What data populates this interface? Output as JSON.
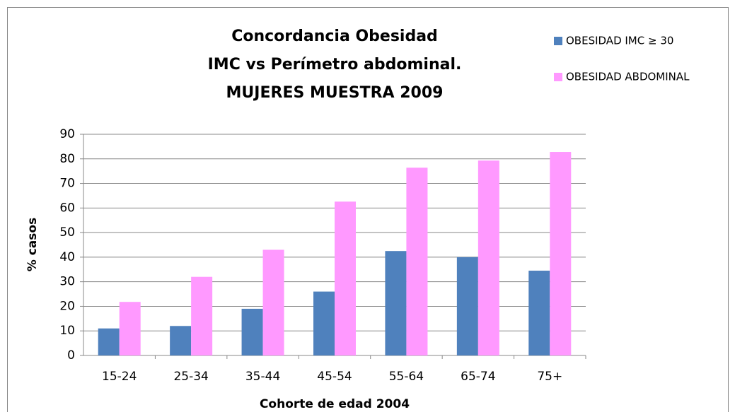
{
  "chart_data": {
    "type": "bar",
    "title": [
      "Concordancia Obesidad",
      "IMC vs Perímetro abdominal.",
      "MUJERES MUESTRA 2009"
    ],
    "x_label": "Cohorte de edad 2004",
    "y_label": "% casos",
    "categories": [
      "15-24",
      "25-34",
      "35-44",
      "45-54",
      "55-64",
      "65-74",
      "75+"
    ],
    "series": [
      {
        "name": "OBESIDAD IMC ≥ 30",
        "color": "#4f81bd",
        "values": [
          11,
          12,
          19,
          26,
          42.5,
          40,
          34.5
        ]
      },
      {
        "name": "OBESIDAD ABDOMINAL",
        "color": "#ff99ff",
        "values": [
          21.8,
          32,
          43,
          62.6,
          76.4,
          79.3,
          82.8
        ]
      }
    ],
    "ylim": [
      0,
      90
    ],
    "yticks": [
      0,
      10,
      20,
      30,
      40,
      50,
      60,
      70,
      80,
      90
    ],
    "grid": true,
    "legend": "top-right"
  }
}
